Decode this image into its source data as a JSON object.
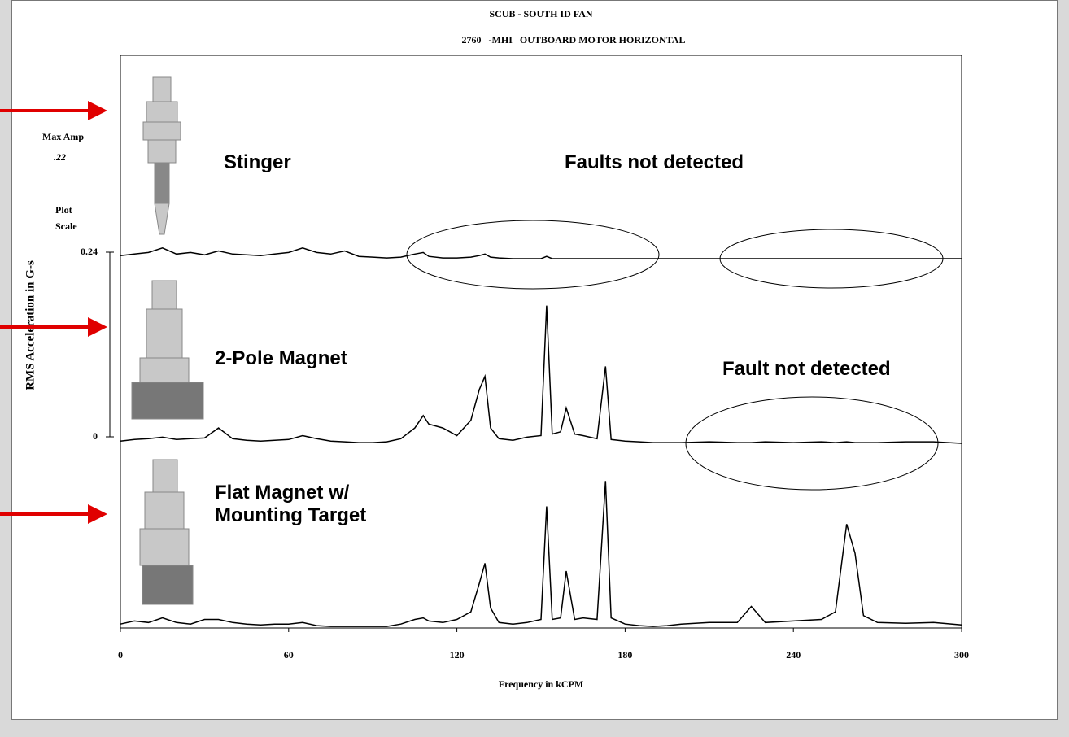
{
  "chart_data": {
    "type": "line",
    "title": "SCUB - SOUTH ID FAN",
    "subtitle": "2760   -MHI   OUTBOARD MOTOR HORIZONTAL",
    "x_label": "Frequency in kCPM",
    "y_label": "RMS Acceleration in G-s",
    "max_amp_label": "Max Amp",
    "max_amp_value": ".22",
    "scale_label": "Plot Scale",
    "annotations": [
      "Faults not detected",
      "Fault not detected"
    ],
    "xlim": [
      0,
      300
    ],
    "xticks": [
      0,
      60,
      120,
      180,
      240,
      300
    ],
    "ylim": [
      0,
      0.24
    ],
    "yticks": [
      0.24,
      0
    ],
    "x": [
      0,
      5,
      10,
      15,
      20,
      25,
      30,
      35,
      40,
      45,
      50,
      55,
      60,
      65,
      70,
      75,
      80,
      85,
      90,
      95,
      100,
      105,
      108,
      110,
      115,
      120,
      125,
      128,
      130,
      132,
      135,
      140,
      145,
      150,
      152,
      154,
      157,
      159,
      162,
      165,
      170,
      173,
      175,
      180,
      185,
      190,
      195,
      200,
      210,
      220,
      225,
      230,
      240,
      250,
      255,
      259,
      262,
      265,
      270,
      280,
      290,
      300
    ],
    "series": [
      {
        "name": "Stinger",
        "color": "#000000",
        "values": [
          0.004,
          0.006,
          0.008,
          0.014,
          0.006,
          0.008,
          0.005,
          0.01,
          0.006,
          0.005,
          0.004,
          0.006,
          0.008,
          0.014,
          0.008,
          0.006,
          0.01,
          0.003,
          0.002,
          0.001,
          0.002,
          0.006,
          0.008,
          0.003,
          0.001,
          0.001,
          0.002,
          0.004,
          0.006,
          0.002,
          0.001,
          0,
          0,
          0,
          0.003,
          0,
          0,
          0,
          0,
          0,
          0,
          0,
          0,
          0,
          0,
          0,
          0,
          0,
          0,
          0,
          0,
          0,
          0,
          0,
          0,
          0,
          0,
          0,
          0,
          0,
          0,
          0
        ]
      },
      {
        "name": "2-Pole Magnet",
        "color": "#000000",
        "values": [
          0.003,
          0.005,
          0.006,
          0.008,
          0.005,
          0.006,
          0.007,
          0.02,
          0.006,
          0.004,
          0.003,
          0.004,
          0.005,
          0.01,
          0.006,
          0.003,
          0.002,
          0.001,
          0.001,
          0.002,
          0.006,
          0.02,
          0.036,
          0.025,
          0.02,
          0.01,
          0.03,
          0.07,
          0.087,
          0.02,
          0.006,
          0.004,
          0.008,
          0.01,
          0.179,
          0.012,
          0.015,
          0.046,
          0.012,
          0.01,
          0.006,
          0.1,
          0.005,
          0.003,
          0.002,
          0.001,
          0.001,
          0.001,
          0.002,
          0.001,
          0.001,
          0.002,
          0.001,
          0.002,
          0.001,
          0.002,
          0.001,
          0.001,
          0.001,
          0.002,
          0.002,
          0
        ]
      },
      {
        "name": "Flat Magnet w/ Mounting Target",
        "color": "#000000",
        "values": [
          0.004,
          0.008,
          0.006,
          0.012,
          0.006,
          0.004,
          0.01,
          0.01,
          0.006,
          0.004,
          0.003,
          0.004,
          0.004,
          0.006,
          0.002,
          0.001,
          0.001,
          0.001,
          0.001,
          0.001,
          0.004,
          0.01,
          0.012,
          0.008,
          0.006,
          0.01,
          0.02,
          0.057,
          0.083,
          0.025,
          0.006,
          0.004,
          0.006,
          0.01,
          0.157,
          0.01,
          0.012,
          0.073,
          0.01,
          0.012,
          0.01,
          0.19,
          0.012,
          0.004,
          0.002,
          0.001,
          0.002,
          0.004,
          0.006,
          0.006,
          0.027,
          0.006,
          0.008,
          0.01,
          0.02,
          0.134,
          0.096,
          0.015,
          0.006,
          0.005,
          0.006,
          0.003
        ]
      }
    ]
  }
}
